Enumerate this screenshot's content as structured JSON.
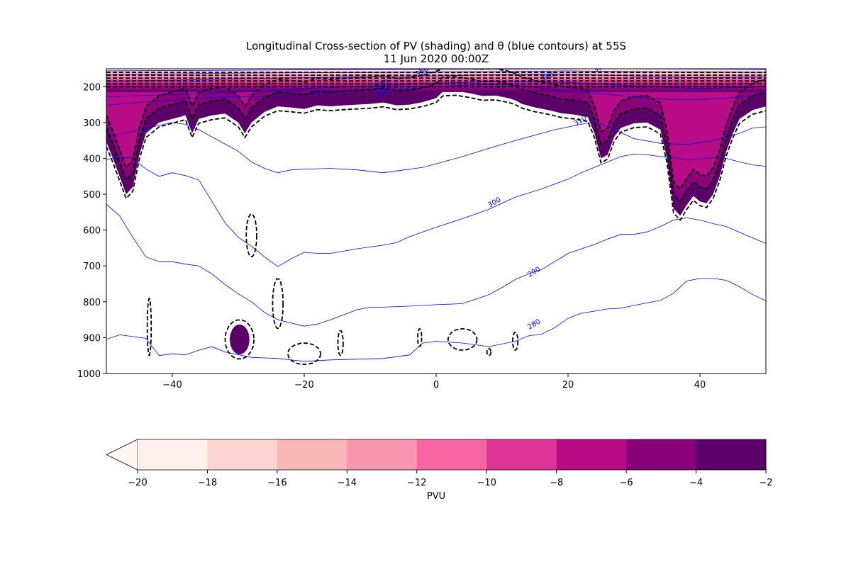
{
  "chart_data": {
    "type": "heatmap",
    "title_line1": "Longitudinal Cross-section of PV (shading) and θ (blue contours) at 55S",
    "title_line2": "11 Jun 2020 00:00Z",
    "x": {
      "ticks": [
        -40,
        -20,
        0,
        20,
        40
      ],
      "range": [
        -50,
        50
      ]
    },
    "y": {
      "ticks": [
        200,
        300,
        400,
        500,
        600,
        700,
        800,
        900,
        1000
      ],
      "range": [
        150,
        1000
      ],
      "inverted": true
    },
    "colorbar": {
      "label": "PVU",
      "ticks": [
        -20,
        -18,
        -16,
        -14,
        -12,
        -10,
        -8,
        -6,
        -4,
        -2
      ],
      "extend": "min",
      "colors": [
        "#fff0ec",
        "#fcd3d0",
        "#fab7b8",
        "#f896b2",
        "#f667a1",
        "#df3497",
        "#b80b86",
        "#890178",
        "#5b0068"
      ],
      "extend_color": "#fff7f3"
    },
    "theta_contours": [
      {
        "label": "280",
        "points": [
          [
            -50,
            905
          ],
          [
            -48,
            892
          ],
          [
            -46,
            897
          ],
          [
            -44,
            902
          ],
          [
            -42,
            950
          ],
          [
            -40,
            945
          ],
          [
            -38,
            948
          ],
          [
            -36,
            935
          ],
          [
            -34,
            925
          ],
          [
            -32,
            940
          ],
          [
            -28,
            955
          ],
          [
            -24,
            958
          ],
          [
            -20,
            966
          ],
          [
            -16,
            962
          ],
          [
            -12,
            960
          ],
          [
            -8,
            958
          ],
          [
            -4,
            948
          ],
          [
            -2,
            915
          ],
          [
            0,
            910
          ],
          [
            4,
            915
          ],
          [
            8,
            925
          ],
          [
            12,
            910
          ],
          [
            14,
            895
          ],
          [
            16,
            890
          ],
          [
            18,
            872
          ],
          [
            20,
            846
          ],
          [
            22,
            832
          ],
          [
            24,
            826
          ],
          [
            26,
            820
          ],
          [
            28,
            818
          ],
          [
            30,
            810
          ],
          [
            34,
            796
          ],
          [
            36,
            776
          ],
          [
            38,
            742
          ],
          [
            40,
            735
          ],
          [
            42,
            735
          ],
          [
            44,
            740
          ],
          [
            46,
            758
          ],
          [
            48,
            780
          ],
          [
            50,
            797
          ]
        ]
      },
      {
        "label": "290",
        "points": [
          [
            -50,
            528
          ],
          [
            -48,
            560
          ],
          [
            -46,
            620
          ],
          [
            -44,
            675
          ],
          [
            -42,
            688
          ],
          [
            -40,
            688
          ],
          [
            -38,
            695
          ],
          [
            -36,
            700
          ],
          [
            -34,
            722
          ],
          [
            -32,
            752
          ],
          [
            -30,
            778
          ],
          [
            -28,
            800
          ],
          [
            -26,
            830
          ],
          [
            -24,
            850
          ],
          [
            -20,
            868
          ],
          [
            -18,
            862
          ],
          [
            -16,
            850
          ],
          [
            -12,
            822
          ],
          [
            -10,
            815
          ],
          [
            -8,
            815
          ],
          [
            -4,
            812
          ],
          [
            0,
            808
          ],
          [
            4,
            805
          ],
          [
            8,
            780
          ],
          [
            10,
            760
          ],
          [
            12,
            738
          ],
          [
            14,
            722
          ],
          [
            16,
            710
          ],
          [
            20,
            665
          ],
          [
            24,
            640
          ],
          [
            26,
            625
          ],
          [
            28,
            612
          ],
          [
            30,
            612
          ],
          [
            32,
            605
          ],
          [
            34,
            590
          ],
          [
            36,
            572
          ],
          [
            38,
            566
          ],
          [
            40,
            572
          ],
          [
            42,
            582
          ],
          [
            44,
            590
          ],
          [
            46,
            606
          ],
          [
            48,
            622
          ],
          [
            50,
            637
          ]
        ]
      },
      {
        "label": "300",
        "points": [
          [
            -50,
            403
          ],
          [
            -48,
            396
          ],
          [
            -46,
            400
          ],
          [
            -44,
            430
          ],
          [
            -42,
            450
          ],
          [
            -40,
            440
          ],
          [
            -38,
            448
          ],
          [
            -36,
            460
          ],
          [
            -34,
            520
          ],
          [
            -32,
            580
          ],
          [
            -30,
            620
          ],
          [
            -28,
            645
          ],
          [
            -26,
            675
          ],
          [
            -24,
            702
          ],
          [
            -22,
            680
          ],
          [
            -20,
            662
          ],
          [
            -18,
            665
          ],
          [
            -16,
            665
          ],
          [
            -12,
            652
          ],
          [
            -8,
            642
          ],
          [
            -6,
            635
          ],
          [
            -4,
            618
          ],
          [
            -2,
            605
          ],
          [
            0,
            592
          ],
          [
            4,
            568
          ],
          [
            8,
            542
          ],
          [
            10,
            525
          ],
          [
            12,
            508
          ],
          [
            16,
            485
          ],
          [
            20,
            458
          ],
          [
            22,
            440
          ],
          [
            24,
            425
          ],
          [
            26,
            410
          ],
          [
            28,
            395
          ],
          [
            30,
            388
          ],
          [
            32,
            390
          ],
          [
            34,
            395
          ],
          [
            36,
            397
          ],
          [
            38,
            405
          ],
          [
            42,
            398
          ],
          [
            44,
            400
          ],
          [
            46,
            410
          ],
          [
            48,
            418
          ],
          [
            50,
            422
          ]
        ]
      },
      {
        "label": "310",
        "points": [
          [
            -50,
            340
          ],
          [
            -46,
            325
          ],
          [
            -42,
            308
          ],
          [
            -40,
            300
          ],
          [
            -38,
            305
          ],
          [
            -36,
            320
          ],
          [
            -34,
            340
          ],
          [
            -30,
            380
          ],
          [
            -28,
            410
          ],
          [
            -26,
            428
          ],
          [
            -24,
            440
          ],
          [
            -22,
            432
          ],
          [
            -20,
            430
          ],
          [
            -16,
            428
          ],
          [
            -12,
            432
          ],
          [
            -8,
            440
          ],
          [
            -6,
            435
          ],
          [
            -2,
            425
          ],
          [
            0,
            415
          ],
          [
            4,
            395
          ],
          [
            8,
            372
          ],
          [
            12,
            350
          ],
          [
            16,
            330
          ],
          [
            18,
            320
          ],
          [
            22,
            305
          ],
          [
            24,
            298
          ],
          [
            26,
            310
          ],
          [
            28,
            328
          ],
          [
            30,
            345
          ],
          [
            34,
            358
          ],
          [
            38,
            362
          ],
          [
            42,
            350
          ],
          [
            46,
            330
          ],
          [
            48,
            315
          ],
          [
            50,
            312
          ]
        ]
      },
      {
        "label": "320",
        "points": [
          [
            -50,
            252
          ],
          [
            -46,
            245
          ],
          [
            -40,
            238
          ],
          [
            -36,
            232
          ],
          [
            -30,
            228
          ],
          [
            -24,
            226
          ],
          [
            -20,
            222
          ],
          [
            -16,
            215
          ],
          [
            -12,
            210
          ],
          [
            -8,
            208
          ],
          [
            -4,
            206
          ],
          [
            0,
            200
          ],
          [
            4,
            196
          ],
          [
            8,
            194
          ],
          [
            12,
            196
          ],
          [
            16,
            204
          ],
          [
            20,
            212
          ],
          [
            24,
            218
          ],
          [
            28,
            225
          ],
          [
            32,
            232
          ],
          [
            36,
            236
          ],
          [
            40,
            236
          ],
          [
            44,
            232
          ],
          [
            50,
            222
          ]
        ]
      },
      {
        "label": "330",
        "points": [
          [
            -50,
            228
          ],
          [
            -40,
            222
          ],
          [
            -30,
            215
          ],
          [
            -20,
            205
          ],
          [
            -10,
            198
          ],
          [
            0,
            190
          ],
          [
            10,
            186
          ],
          [
            20,
            188
          ],
          [
            30,
            198
          ],
          [
            40,
            205
          ],
          [
            50,
            200
          ]
        ]
      },
      {
        "label": "340",
        "points": [
          [
            -50,
            185
          ],
          [
            -40,
            182
          ],
          [
            -30,
            178
          ],
          [
            -20,
            175
          ],
          [
            -10,
            172
          ],
          [
            0,
            170
          ],
          [
            10,
            166
          ],
          [
            20,
            165
          ],
          [
            30,
            170
          ],
          [
            40,
            175
          ],
          [
            50,
            172
          ]
        ]
      },
      {
        "label": "350",
        "points": [
          [
            -50,
            166
          ],
          [
            -30,
            162
          ],
          [
            -10,
            160
          ],
          [
            10,
            158
          ],
          [
            20,
            156
          ],
          [
            30,
            158
          ],
          [
            50,
            160
          ]
        ]
      },
      {
        "label": "360",
        "points": [
          [
            -50,
            156
          ],
          [
            -30,
            154
          ],
          [
            -10,
            152
          ],
          [
            10,
            151
          ],
          [
            25,
            150
          ],
          [
            40,
            151
          ],
          [
            50,
            152
          ]
        ]
      }
    ]
  }
}
